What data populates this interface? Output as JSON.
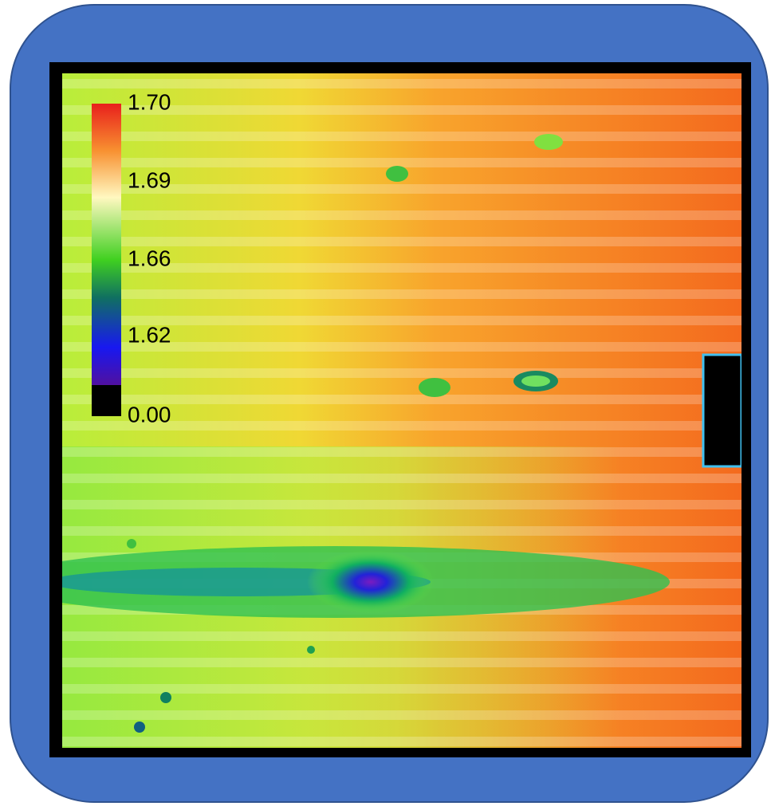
{
  "colorbar": {
    "labels": [
      "1.70",
      "1.69",
      "1.66",
      "1.62",
      "0.00"
    ]
  }
}
